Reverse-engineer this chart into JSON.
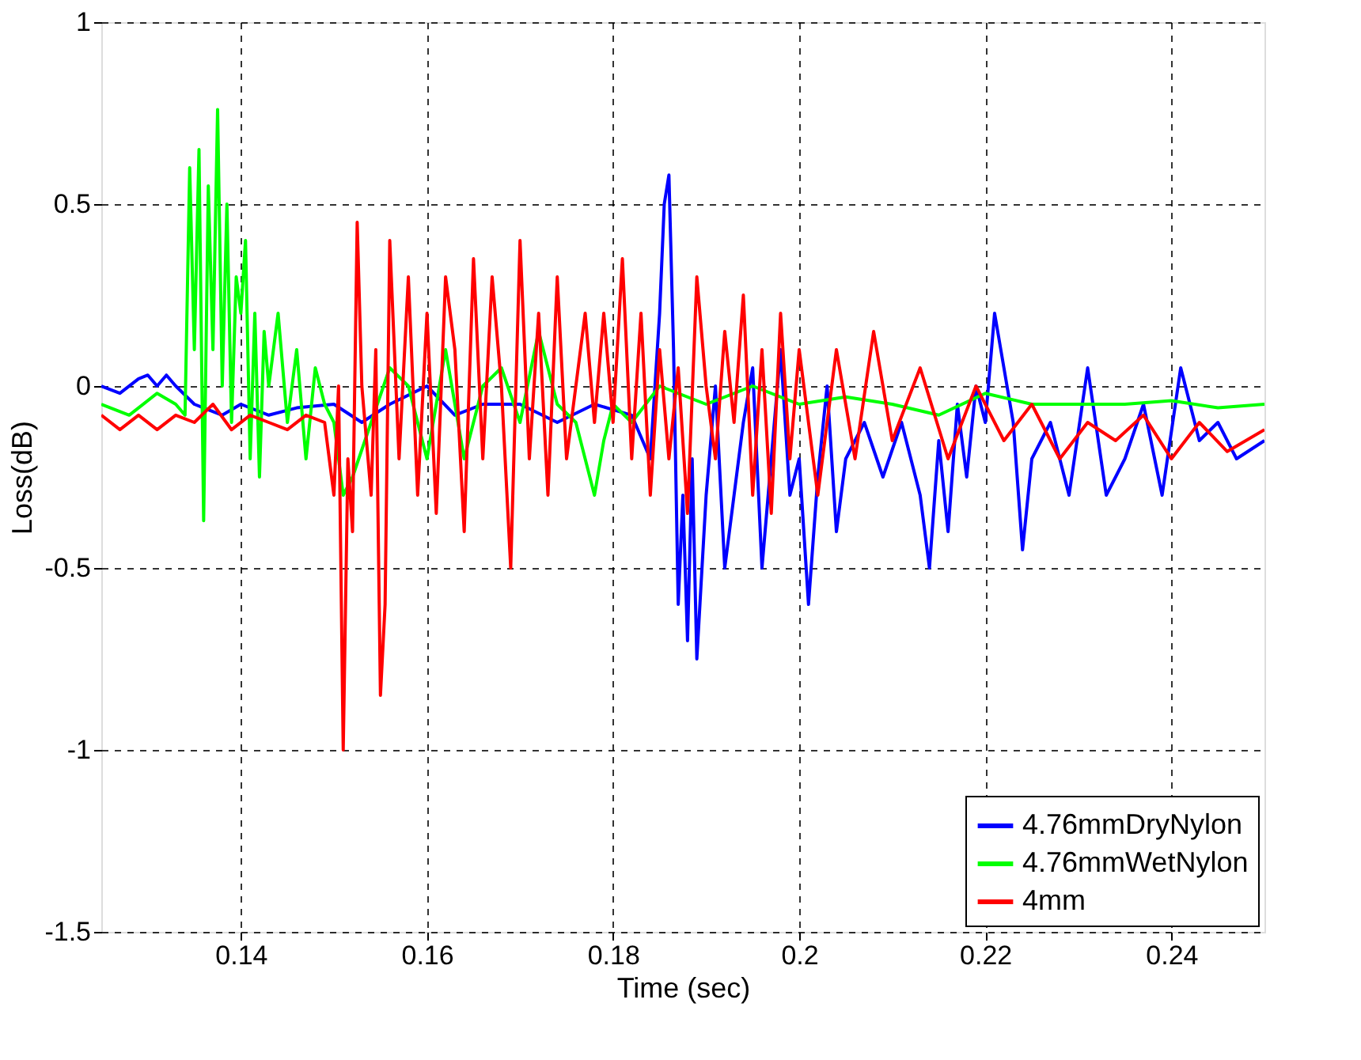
{
  "chart_data": {
    "type": "line",
    "xlabel": "Time (sec)",
    "ylabel": "Loss(dB)",
    "xlim": [
      0.125,
      0.25
    ],
    "ylim": [
      -1.5,
      1
    ],
    "xticks": [
      0.14,
      0.16,
      0.18,
      {
        "value": 0.2,
        "label": "0.2"
      },
      0.22,
      0.24
    ],
    "yticks": [
      -1.5,
      -1,
      -0.5,
      0,
      0.5,
      1
    ],
    "grid": true,
    "legend": "bottom right",
    "line_style": "solid",
    "marker": "none",
    "series": [
      {
        "name": "4.76mmDryNylon",
        "color": "#0000ff",
        "x": [
          0.125,
          0.127,
          0.129,
          0.13,
          0.131,
          0.132,
          0.133,
          0.135,
          0.138,
          0.14,
          0.143,
          0.146,
          0.15,
          0.153,
          0.156,
          0.16,
          0.163,
          0.166,
          0.17,
          0.174,
          0.178,
          0.182,
          0.184,
          0.185,
          0.1855,
          0.186,
          0.1865,
          0.187,
          0.1875,
          0.188,
          0.1885,
          0.189,
          0.19,
          0.191,
          0.192,
          0.193,
          0.194,
          0.195,
          0.196,
          0.197,
          0.198,
          0.199,
          0.2,
          0.201,
          0.202,
          0.203,
          0.204,
          0.205,
          0.207,
          0.209,
          0.211,
          0.213,
          0.214,
          0.215,
          0.216,
          0.217,
          0.218,
          0.219,
          0.22,
          0.221,
          0.222,
          0.223,
          0.224,
          0.225,
          0.227,
          0.229,
          0.231,
          0.233,
          0.235,
          0.237,
          0.239,
          0.241,
          0.243,
          0.245,
          0.247,
          0.25
        ],
        "values": [
          0.0,
          -0.02,
          0.02,
          0.03,
          0.0,
          0.03,
          0.0,
          -0.05,
          -0.08,
          -0.05,
          -0.08,
          -0.06,
          -0.05,
          -0.1,
          -0.05,
          0.0,
          -0.08,
          -0.05,
          -0.05,
          -0.1,
          -0.05,
          -0.08,
          -0.2,
          0.2,
          0.5,
          0.58,
          0.1,
          -0.6,
          -0.3,
          -0.7,
          -0.2,
          -0.75,
          -0.3,
          0.0,
          -0.5,
          -0.3,
          -0.1,
          0.05,
          -0.5,
          -0.2,
          0.1,
          -0.3,
          -0.2,
          -0.6,
          -0.25,
          0.0,
          -0.4,
          -0.2,
          -0.1,
          -0.25,
          -0.1,
          -0.3,
          -0.5,
          -0.15,
          -0.4,
          -0.05,
          -0.25,
          0.0,
          -0.1,
          0.2,
          0.05,
          -0.1,
          -0.45,
          -0.2,
          -0.1,
          -0.3,
          0.05,
          -0.3,
          -0.2,
          -0.05,
          -0.3,
          0.05,
          -0.15,
          -0.1,
          -0.2,
          -0.15
        ]
      },
      {
        "name": "4.76mmWetNylon",
        "color": "#00ff00",
        "x": [
          0.125,
          0.128,
          0.131,
          0.133,
          0.134,
          0.1345,
          0.135,
          0.1355,
          0.136,
          0.1365,
          0.137,
          0.1375,
          0.138,
          0.1385,
          0.139,
          0.1395,
          0.14,
          0.1405,
          0.141,
          0.1415,
          0.142,
          0.1425,
          0.143,
          0.144,
          0.145,
          0.146,
          0.147,
          0.148,
          0.149,
          0.15,
          0.151,
          0.152,
          0.154,
          0.156,
          0.158,
          0.16,
          0.162,
          0.164,
          0.166,
          0.168,
          0.17,
          0.172,
          0.174,
          0.176,
          0.177,
          0.178,
          0.179,
          0.18,
          0.182,
          0.185,
          0.19,
          0.195,
          0.2,
          0.205,
          0.21,
          0.215,
          0.22,
          0.225,
          0.23,
          0.235,
          0.24,
          0.245,
          0.25
        ],
        "values": [
          -0.05,
          -0.08,
          -0.02,
          -0.05,
          -0.08,
          0.6,
          0.1,
          0.65,
          -0.37,
          0.55,
          0.1,
          0.76,
          0.0,
          0.5,
          -0.1,
          0.3,
          0.2,
          0.4,
          -0.2,
          0.2,
          -0.25,
          0.15,
          0.0,
          0.2,
          -0.1,
          0.1,
          -0.2,
          0.05,
          -0.05,
          -0.1,
          -0.3,
          -0.25,
          -0.1,
          0.05,
          0.0,
          -0.2,
          0.1,
          -0.2,
          0.0,
          0.05,
          -0.1,
          0.15,
          -0.05,
          -0.1,
          -0.2,
          -0.3,
          -0.15,
          -0.05,
          -0.1,
          0.0,
          -0.05,
          0.0,
          -0.05,
          -0.03,
          -0.05,
          -0.08,
          -0.02,
          -0.05,
          -0.05,
          -0.05,
          -0.04,
          -0.06,
          -0.05
        ]
      },
      {
        "name": "4mm",
        "color": "#ff0000",
        "x": [
          0.125,
          0.127,
          0.129,
          0.131,
          0.133,
          0.135,
          0.137,
          0.139,
          0.141,
          0.143,
          0.145,
          0.147,
          0.149,
          0.15,
          0.1505,
          0.151,
          0.1515,
          0.152,
          0.1525,
          0.153,
          0.154,
          0.1545,
          0.155,
          0.1555,
          0.156,
          0.157,
          0.158,
          0.159,
          0.16,
          0.161,
          0.162,
          0.163,
          0.164,
          0.165,
          0.166,
          0.167,
          0.168,
          0.169,
          0.17,
          0.171,
          0.172,
          0.173,
          0.174,
          0.175,
          0.176,
          0.177,
          0.178,
          0.179,
          0.18,
          0.181,
          0.182,
          0.183,
          0.184,
          0.185,
          0.186,
          0.187,
          0.188,
          0.189,
          0.19,
          0.191,
          0.192,
          0.193,
          0.194,
          0.195,
          0.196,
          0.197,
          0.198,
          0.199,
          0.2,
          0.202,
          0.204,
          0.206,
          0.208,
          0.21,
          0.213,
          0.216,
          0.219,
          0.222,
          0.225,
          0.228,
          0.231,
          0.234,
          0.237,
          0.24,
          0.243,
          0.246,
          0.25
        ],
        "values": [
          -0.08,
          -0.12,
          -0.08,
          -0.12,
          -0.08,
          -0.1,
          -0.05,
          -0.12,
          -0.08,
          -0.1,
          -0.12,
          -0.08,
          -0.1,
          -0.3,
          0.0,
          -1.0,
          -0.2,
          -0.4,
          0.45,
          0.0,
          -0.3,
          0.1,
          -0.85,
          -0.6,
          0.4,
          -0.2,
          0.3,
          -0.3,
          0.2,
          -0.35,
          0.3,
          0.1,
          -0.4,
          0.35,
          -0.2,
          0.3,
          0.0,
          -0.5,
          0.4,
          -0.2,
          0.2,
          -0.3,
          0.3,
          -0.2,
          0.0,
          0.2,
          -0.1,
          0.2,
          -0.1,
          0.35,
          -0.2,
          0.2,
          -0.3,
          0.1,
          -0.2,
          0.05,
          -0.35,
          0.3,
          0.0,
          -0.2,
          0.15,
          -0.1,
          0.25,
          -0.3,
          0.1,
          -0.35,
          0.2,
          -0.2,
          0.1,
          -0.3,
          0.1,
          -0.2,
          0.15,
          -0.15,
          0.05,
          -0.2,
          0.0,
          -0.15,
          -0.05,
          -0.2,
          -0.1,
          -0.15,
          -0.08,
          -0.2,
          -0.1,
          -0.18,
          -0.12
        ]
      }
    ]
  }
}
